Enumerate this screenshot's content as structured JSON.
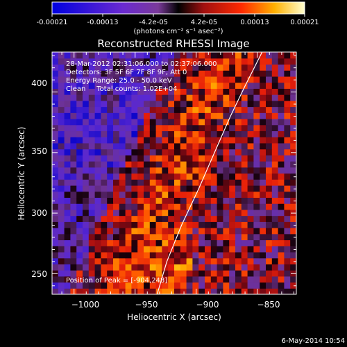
{
  "colorbar": {
    "ticks": [
      "-0.00021",
      "-0.00013",
      "-4.2e-05",
      "4.2e-05",
      "0.00013",
      "0.00021"
    ],
    "unit_label": "(photons cm⁻² s⁻¹ asec⁻²)",
    "min": -0.00021,
    "max": 0.00021
  },
  "chart_data": {
    "type": "heatmap",
    "title": "Reconstructed RHESSI Image",
    "xlabel": "Heliocentric X (arcsec)",
    "ylabel": "Heliocentric Y (arcsec)",
    "xlim": [
      -1018,
      -818
    ],
    "ylim": [
      233,
      433
    ],
    "x_ticks": [
      -1000,
      -950,
      -900,
      -850
    ],
    "x_tick_labels": [
      "−1000",
      "−950",
      "−900",
      "−850"
    ],
    "y_ticks": [
      250,
      300,
      350,
      400
    ],
    "y_tick_labels": [
      "250",
      "300",
      "350",
      "400"
    ],
    "annotations": [
      "28-Mar-2012 02:31:06.000 to 02:37:06.000",
      "Detectors: 3F 5F 6F 7F 8F 9F, Att 0",
      "Energy Range: 25.0 - 50.0 keV",
      "Clean     Total counts: 1.02E+04"
    ],
    "peak_label": "Position of Peak = [-904,248]",
    "peak": [
      -904,
      248
    ],
    "limb_curve": [
      [
        -932,
        233
      ],
      [
        -924,
        260
      ],
      [
        -912,
        290
      ],
      [
        -898,
        320
      ],
      [
        -885,
        350
      ],
      [
        -872,
        380
      ],
      [
        -860,
        405
      ],
      [
        -852,
        421
      ],
      [
        -846,
        433
      ]
    ]
  },
  "footer": {
    "date": "6-May-2014 10:54"
  },
  "colors": {
    "background": "#000000",
    "text": "#ffffff"
  }
}
